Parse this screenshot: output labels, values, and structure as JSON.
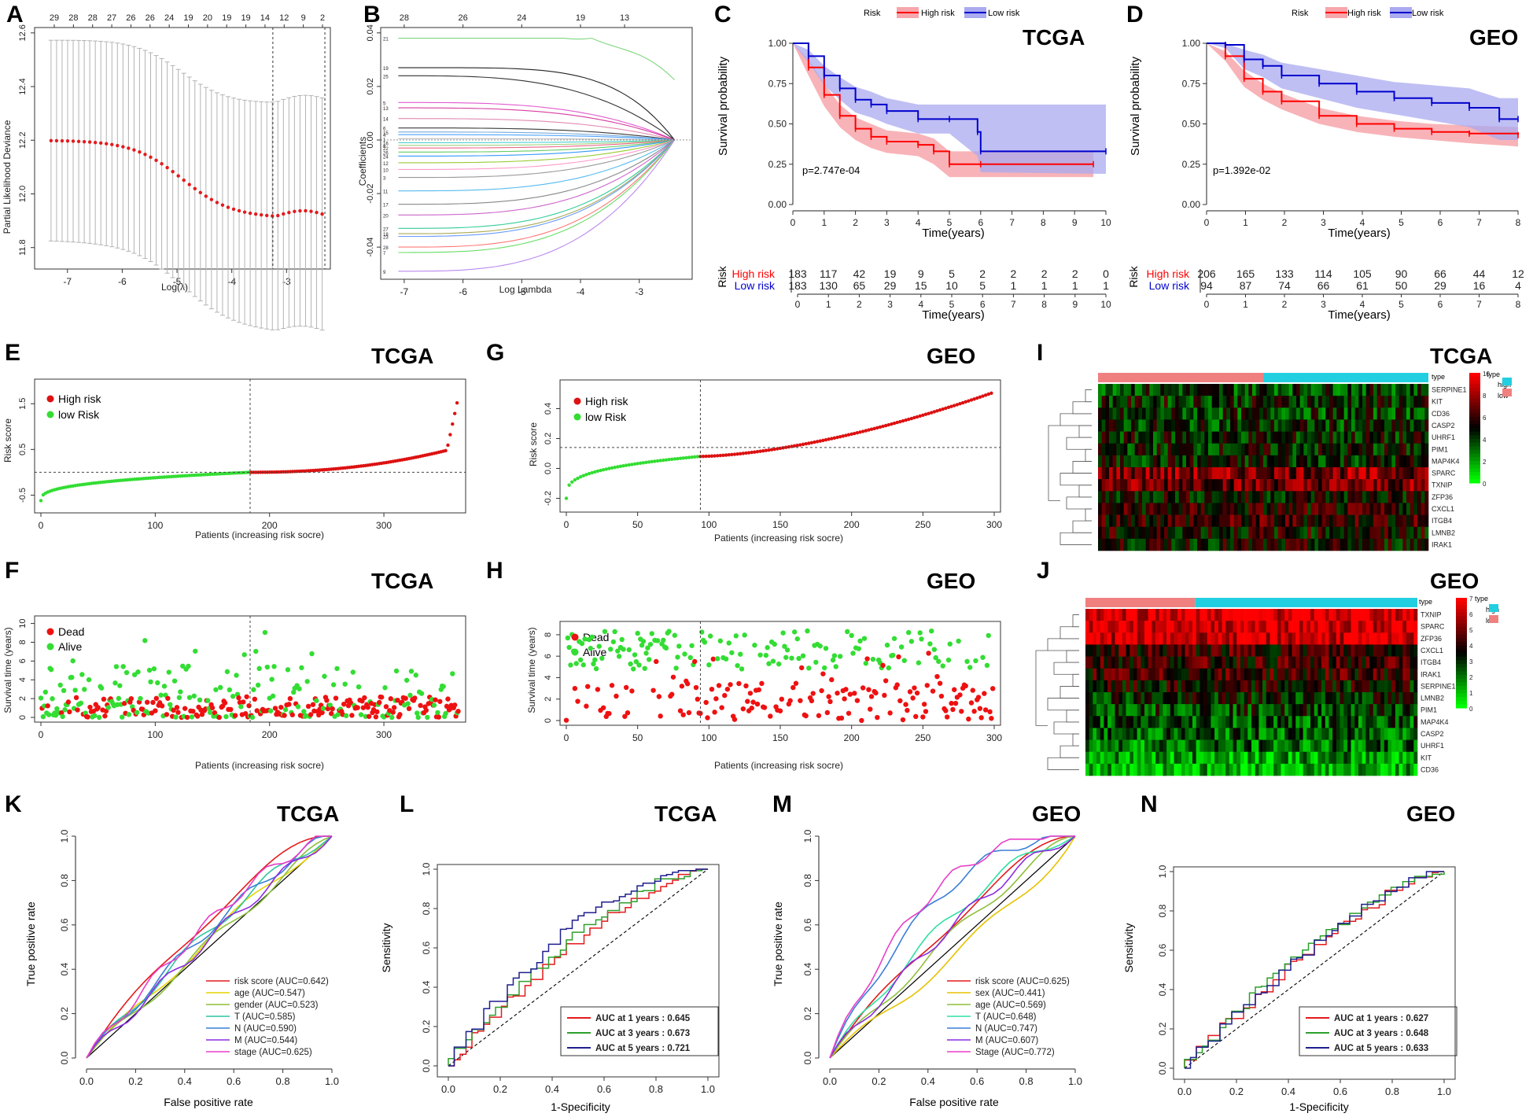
{
  "panels": {
    "A": {
      "label": "A",
      "type": "lasso-cv",
      "xlabel": "Log(λ)",
      "ylabel": "Partial Likelihood Deviance",
      "xlim": [
        -7.6,
        -2.2
      ],
      "ylim": [
        11.72,
        12.62
      ],
      "xticks": [
        -7,
        -6,
        -5,
        -4,
        -3
      ],
      "yticks": [
        11.8,
        12.0,
        12.2,
        12.4,
        12.6
      ],
      "top_counts": [
        "29",
        "28",
        "28",
        "27",
        "26",
        "26",
        "24",
        "19",
        "20",
        "19",
        "19",
        "14",
        "12",
        "9",
        "2"
      ],
      "vlines": [
        -3.25,
        -2.3
      ],
      "colors": {
        "points": "#e41a1c",
        "bars": "#b3b3b3"
      }
    },
    "B": {
      "label": "B",
      "type": "lasso-path",
      "xlabel": "Log Lambda",
      "ylabel": "Coefficients",
      "xlim": [
        -7.4,
        -2.1
      ],
      "ylim": [
        -0.052,
        0.042
      ],
      "xticks": [
        -7,
        -6,
        -5,
        -4,
        -3
      ],
      "yticks": [
        -0.04,
        -0.02,
        0.0,
        0.02,
        0.04
      ],
      "top_counts": [
        "28",
        "26",
        "24",
        "19",
        "13"
      ],
      "left_labels": [
        "21",
        "19",
        "25",
        "5",
        "13",
        "14",
        "6",
        "15",
        "4",
        "1",
        "16",
        "8",
        "22",
        "26",
        "24",
        "12",
        "10",
        "3",
        "11",
        "17",
        "20",
        "27",
        "18",
        "23",
        "28",
        "7",
        "9"
      ]
    },
    "C": {
      "label": "C",
      "title": "TCGA",
      "type": "km",
      "legend_title": "Risk",
      "legend": [
        "High risk",
        "Low risk"
      ],
      "xlabel": "Time(years)",
      "ylabel": "Survival probability",
      "xticks": [
        "0",
        "1",
        "2",
        "3",
        "4",
        "5",
        "6",
        "7",
        "8",
        "9",
        "10"
      ],
      "yticks": [
        "0.00",
        "0.25",
        "0.50",
        "0.75",
        "1.00"
      ],
      "pvalue": "p=2.747e-04",
      "risk_table": {
        "row_title": "Risk",
        "rows": [
          {
            "name": "High risk",
            "values": [
              "183",
              "117",
              "42",
              "19",
              "9",
              "5",
              "2",
              "2",
              "2",
              "2",
              "0"
            ]
          },
          {
            "name": "Low risk",
            "values": [
              "183",
              "130",
              "65",
              "29",
              "15",
              "10",
              "5",
              "1",
              "1",
              "1",
              "1"
            ]
          }
        ],
        "xlabel": "Time(years)"
      },
      "colors": {
        "high": "#ff0000",
        "low": "#0000cc",
        "high_band": "#f7a6ac",
        "low_band": "#aaaaf0"
      }
    },
    "D": {
      "label": "D",
      "title": "GEO",
      "type": "km",
      "legend_title": "Risk",
      "legend": [
        "High risk",
        "Low risk"
      ],
      "xlabel": "Time(years)",
      "ylabel": "Survival probability",
      "xticks": [
        "0",
        "1",
        "2",
        "3",
        "4",
        "5",
        "6",
        "7",
        "8"
      ],
      "yticks": [
        "0.00",
        "0.25",
        "0.50",
        "0.75",
        "1.00"
      ],
      "pvalue": "p=1.392e-02",
      "risk_table": {
        "row_title": "Risk",
        "rows": [
          {
            "name": "High risk",
            "values": [
              "206",
              "165",
              "133",
              "114",
              "105",
              "90",
              "66",
              "44",
              "12"
            ]
          },
          {
            "name": "Low risk",
            "values": [
              "94",
              "87",
              "74",
              "66",
              "61",
              "50",
              "29",
              "16",
              "4"
            ]
          }
        ],
        "xlabel": "Time(years)"
      }
    },
    "E": {
      "label": "E",
      "title": "TCGA",
      "type": "risk-score",
      "legend": [
        "High risk",
        "low Risk"
      ],
      "xlabel": "Patients (increasing risk socre)",
      "ylabel": "Risk score",
      "xticks": [
        "0",
        "100",
        "200",
        "300"
      ],
      "yticks": [
        "-0.5",
        "0.5",
        "1.5"
      ],
      "n": 366,
      "cutoff_index": 183
    },
    "G": {
      "label": "G",
      "title": "GEO",
      "type": "risk-score",
      "legend": [
        "High risk",
        "low Risk"
      ],
      "xlabel": "Patients (increasing risk socre)",
      "ylabel": "Risk score",
      "xticks": [
        "0",
        "50",
        "100",
        "150",
        "200",
        "250",
        "300"
      ],
      "yticks": [
        "-0.2",
        "0.0",
        "0.2",
        "0.4"
      ],
      "n": 300,
      "cutoff_index": 94
    },
    "F": {
      "label": "F",
      "title": "TCGA",
      "type": "survival-status",
      "legend": [
        "Dead",
        "Alive"
      ],
      "xlabel": "Patients (increasing risk socre)",
      "ylabel": "Survival time (years)",
      "xticks": [
        "0",
        "100",
        "200",
        "300"
      ],
      "yticks": [
        "0",
        "2",
        "4",
        "6",
        "8",
        "10"
      ]
    },
    "H": {
      "label": "H",
      "title": "GEO",
      "type": "survival-status",
      "legend": [
        "Dead",
        "Alive"
      ],
      "xlabel": "Patients (increasing risk socre)",
      "ylabel": "Survival time (years)",
      "xticks": [
        "0",
        "50",
        "100",
        "150",
        "200",
        "250",
        "300"
      ],
      "yticks": [
        "0",
        "2",
        "4",
        "6",
        "8"
      ]
    },
    "I": {
      "label": "I",
      "title": "TCGA",
      "type": "heatmap",
      "genes": [
        "SERPINE1",
        "KIT",
        "CD36",
        "CASP2",
        "UHRF1",
        "PIM1",
        "MAP4K4",
        "SPARC",
        "TXNIP",
        "ZFP36",
        "CXCL1",
        "ITGB4",
        "LMNB2",
        "IRAK1"
      ],
      "type_label": "type",
      "scale_ticks": [
        "10",
        "8",
        "6",
        "4",
        "2",
        "0"
      ],
      "legend_title": "type",
      "legend": [
        "high",
        "low"
      ]
    },
    "J": {
      "label": "J",
      "title": "GEO",
      "type": "heatmap",
      "genes": [
        "TXNIP",
        "SPARC",
        "ZFP36",
        "CXCL1",
        "ITGB4",
        "IRAK1",
        "SERPINE1",
        "LMNB2",
        "PIM1",
        "MAP4K4",
        "CASP2",
        "UHRF1",
        "KIT",
        "CD36"
      ],
      "type_label": "type",
      "scale_ticks": [
        "7",
        "6",
        "5",
        "4",
        "3",
        "2",
        "1",
        "0"
      ],
      "legend_title": "type",
      "legend": [
        "high",
        "low"
      ]
    },
    "K": {
      "label": "K",
      "title": "TCGA",
      "type": "roc",
      "xlabel": "False positive rate",
      "ylabel": "True positive rate",
      "ticks": [
        "0.0",
        "0.2",
        "0.4",
        "0.6",
        "0.8",
        "1.0"
      ],
      "series": [
        {
          "name": "risk score (AUC=0.642)",
          "auc": 0.642,
          "color": "#e41a1c"
        },
        {
          "name": "age (AUC=0.547)",
          "auc": 0.547,
          "color": "#e6d200"
        },
        {
          "name": "gender (AUC=0.523)",
          "auc": 0.523,
          "color": "#8fbf3a"
        },
        {
          "name": "T (AUC=0.585)",
          "auc": 0.585,
          "color": "#2ec4a0"
        },
        {
          "name": "N (AUC=0.590)",
          "auc": 0.59,
          "color": "#3a7fd6"
        },
        {
          "name": "M (AUC=0.544)",
          "auc": 0.544,
          "color": "#8a2be2"
        },
        {
          "name": "stage (AUC=0.625)",
          "auc": 0.625,
          "color": "#e83ec8"
        }
      ]
    },
    "L": {
      "label": "L",
      "title": "TCGA",
      "type": "roc-time",
      "xlabel": "1-Specificity",
      "ylabel": "Sensitivity",
      "ticks": [
        "0.0",
        "0.2",
        "0.4",
        "0.6",
        "0.8",
        "1.0"
      ],
      "series": [
        {
          "name": "AUC at 1 years : ",
          "value": "0.645",
          "color": "#e41a1c"
        },
        {
          "name": "AUC at 3 years : ",
          "value": "0.673",
          "color": "#2ca02c"
        },
        {
          "name": "AUC at 5 years : ",
          "value": "0.721",
          "color": "#1f1f8f"
        }
      ]
    },
    "M": {
      "label": "M",
      "title": "GEO",
      "type": "roc",
      "xlabel": "False positive rate",
      "ylabel": "True positive rate",
      "ticks": [
        "0.0",
        "0.2",
        "0.4",
        "0.6",
        "0.8",
        "1.0"
      ],
      "series": [
        {
          "name": "risk score (AUC=0.625)",
          "auc": 0.625,
          "color": "#e41a1c"
        },
        {
          "name": "sex (AUC=0.441)",
          "auc": 0.441,
          "color": "#e6c200"
        },
        {
          "name": "age (AUC=0.569)",
          "auc": 0.569,
          "color": "#8fbf3a"
        },
        {
          "name": "T (AUC=0.648)",
          "auc": 0.648,
          "color": "#2ee0a0"
        },
        {
          "name": "N (AUC=0.747)",
          "auc": 0.747,
          "color": "#3a7fd6"
        },
        {
          "name": "M (AUC=0.607)",
          "auc": 0.607,
          "color": "#8a2be2"
        },
        {
          "name": "Stage (AUC=0.772)",
          "auc": 0.772,
          "color": "#e83ec8"
        }
      ]
    },
    "N": {
      "label": "N",
      "title": "GEO",
      "type": "roc-time",
      "xlabel": "1-Specificity",
      "ylabel": "Sensitivity",
      "ticks": [
        "0.0",
        "0.2",
        "0.4",
        "0.6",
        "0.8",
        "1.0"
      ],
      "series": [
        {
          "name": "AUC at 1 years : ",
          "value": "0.627",
          "color": "#e41a1c"
        },
        {
          "name": "AUC at 3 years : ",
          "value": "0.648",
          "color": "#2ca02c"
        },
        {
          "name": "AUC at 5 years : ",
          "value": "0.633",
          "color": "#1f1f8f"
        }
      ]
    }
  },
  "chart_data": [
    {
      "panel": "C",
      "type": "line",
      "title": "TCGA",
      "xlabel": "Time(years)",
      "ylabel": "Survival probability",
      "series": [
        {
          "name": "High risk",
          "x": [
            0,
            0.5,
            1,
            1.5,
            2,
            2.5,
            3,
            4,
            4.5,
            5,
            6,
            9.6
          ],
          "y": [
            1.0,
            0.85,
            0.68,
            0.55,
            0.47,
            0.42,
            0.39,
            0.37,
            0.33,
            0.25,
            0.25,
            0.25
          ]
        },
        {
          "name": "Low risk",
          "x": [
            0,
            0.5,
            1,
            1.5,
            2,
            2.5,
            3,
            4,
            5,
            5.9,
            6,
            10
          ],
          "y": [
            1.0,
            0.92,
            0.8,
            0.72,
            0.65,
            0.62,
            0.58,
            0.53,
            0.53,
            0.45,
            0.33,
            0.33
          ]
        }
      ],
      "xlim": [
        0,
        10
      ],
      "ylim": [
        0,
        1
      ]
    },
    {
      "panel": "D",
      "type": "line",
      "title": "GEO",
      "xlabel": "Time(years)",
      "ylabel": "Survival probability",
      "series": [
        {
          "name": "High risk",
          "x": [
            0,
            0.5,
            1,
            1.5,
            2,
            3,
            4,
            5,
            6,
            7,
            8.3
          ],
          "y": [
            1.0,
            0.92,
            0.78,
            0.7,
            0.64,
            0.55,
            0.5,
            0.47,
            0.45,
            0.44,
            0.43
          ]
        },
        {
          "name": "Low risk",
          "x": [
            0,
            0.5,
            1,
            1.5,
            2,
            3,
            4,
            5,
            6,
            7,
            7.8,
            8.3
          ],
          "y": [
            1.0,
            0.99,
            0.9,
            0.86,
            0.8,
            0.75,
            0.7,
            0.66,
            0.63,
            0.6,
            0.53,
            0.53
          ]
        }
      ],
      "xlim": [
        0,
        8.3
      ],
      "ylim": [
        0,
        1
      ]
    }
  ]
}
